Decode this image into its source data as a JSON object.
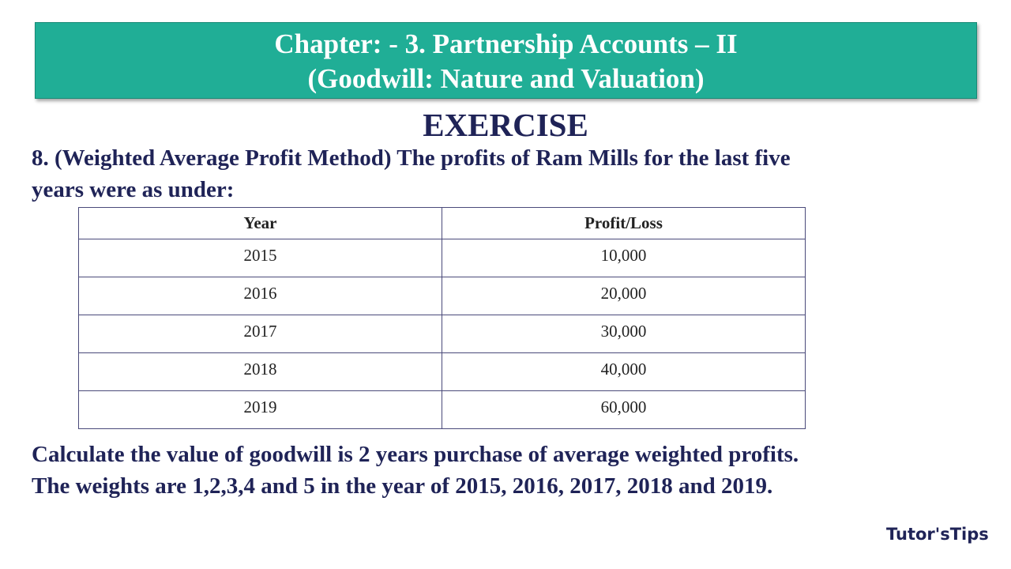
{
  "header": {
    "lines": [
      "Chapter: - 3. Partnership Accounts – II",
      "(Goodwill: Nature and Valuation)"
    ]
  },
  "heading": "EXERCISE",
  "question": {
    "lines": [
      "8. (Weighted Average Profit Method) The profits of Ram Mills for the last five",
      "years were as under:"
    ]
  },
  "table": {
    "columns": [
      "Year",
      "Profit/Loss"
    ],
    "rows": [
      [
        "2015",
        "10,000"
      ],
      [
        "2016",
        "20,000"
      ],
      [
        "2017",
        "30,000"
      ],
      [
        "2018",
        "40,000"
      ],
      [
        "2019",
        "60,000"
      ]
    ]
  },
  "closing": {
    "lines": [
      "Calculate the value of goodwill is 2 years purchase of average weighted profits.",
      "The weights are 1,2,3,4 and 5 in the year of 2015, 2016, 2017, 2018 and 2019."
    ]
  },
  "logo": "Tutor'sTips"
}
